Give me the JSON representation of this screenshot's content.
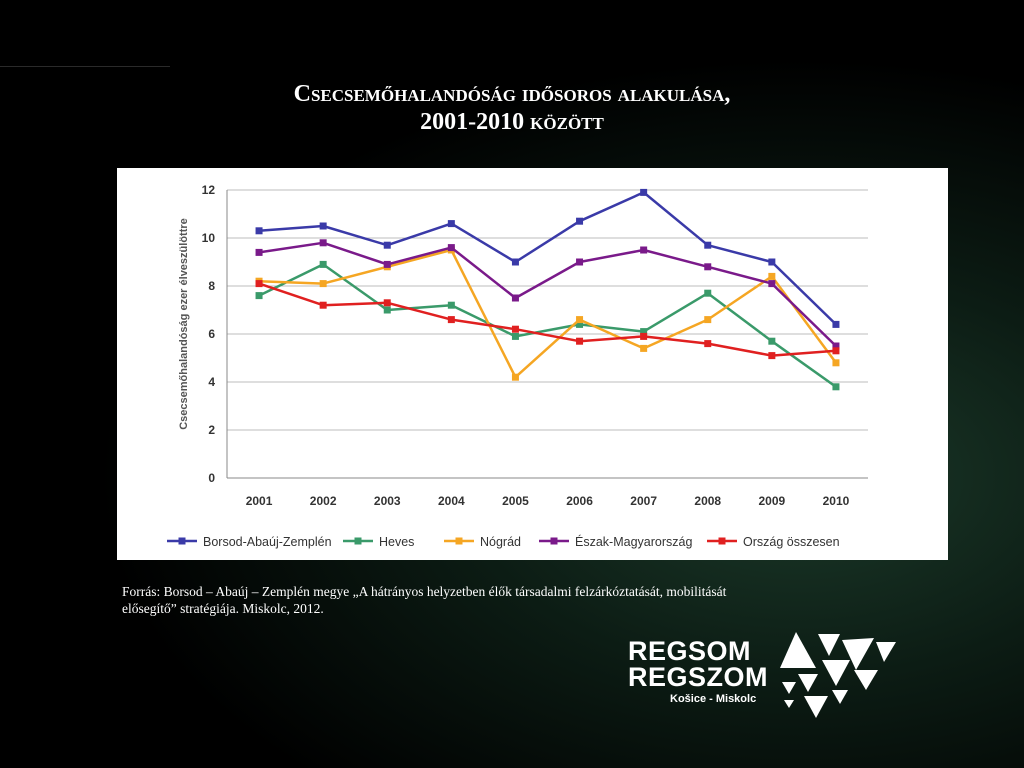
{
  "slide": {
    "title_line1_first": "C",
    "title_line1_rest": "secsemőhalandóság idősoros alakulása,",
    "title_line2_number": "2001-2010",
    "title_line2_word": "között",
    "source": "Forrás: Borsod – Abaúj – Zemplén megye „A hátrányos helyzetben élők társadalmi felzárkóztatását, mobilitását elősegítő” stratégiája. Miskolc, 2012.",
    "logo_line1": "REGSOM",
    "logo_line2": "REGSZOM",
    "logo_sub": "Košice - Miskolc",
    "logo_icon": "triangles-icon"
  },
  "chart_data": {
    "type": "line",
    "title": "",
    "xlabel": "",
    "ylabel": "Csecsemőhalandóság ezer élveszülöttre",
    "x": [
      "2001",
      "2002",
      "2003",
      "2004",
      "2005",
      "2006",
      "2007",
      "2008",
      "2009",
      "2010"
    ],
    "ylim": [
      0,
      12
    ],
    "yticks": [
      "0",
      "2",
      "4",
      "6",
      "8",
      "10",
      "12"
    ],
    "grid": true,
    "legend_position": "bottom",
    "series": [
      {
        "name": "Borsod-Abaúj-Zemplén",
        "color": "#3a3aa8",
        "values": [
          10.3,
          10.5,
          9.7,
          10.6,
          9.0,
          10.7,
          11.9,
          9.7,
          9.0,
          6.4
        ]
      },
      {
        "name": "Heves",
        "color": "#3a9a6a",
        "values": [
          7.6,
          8.9,
          7.0,
          7.2,
          5.9,
          6.4,
          6.1,
          7.7,
          5.7,
          3.8
        ]
      },
      {
        "name": "Nógrád",
        "color": "#f5a623",
        "values": [
          8.2,
          8.1,
          8.8,
          9.5,
          4.2,
          6.6,
          5.4,
          6.6,
          8.4,
          4.8
        ]
      },
      {
        "name": "Észak-Magyarország",
        "color": "#7a1a8a",
        "values": [
          9.4,
          9.8,
          8.9,
          9.6,
          7.5,
          9.0,
          9.5,
          8.8,
          8.1,
          5.5
        ]
      },
      {
        "name": "Ország összesen",
        "color": "#e02020",
        "values": [
          8.1,
          7.2,
          7.3,
          6.6,
          6.2,
          5.7,
          5.9,
          5.6,
          5.1,
          5.3
        ]
      }
    ]
  }
}
